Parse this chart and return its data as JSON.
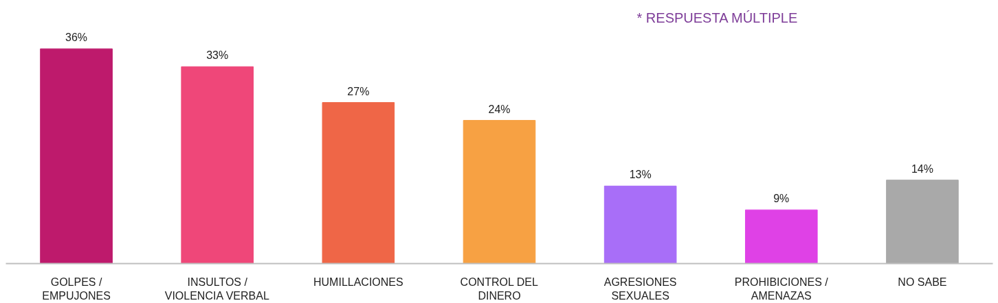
{
  "chart_data": {
    "type": "bar",
    "categories": [
      "GOLPES /\nEMPUJONES",
      "INSULTOS /\nVIOLENCIA VERBAL",
      "HUMILLACIONES",
      "CONTROL DEL\nDINERO",
      "AGRESIONES\nSEXUALES",
      "PROHIBICIONES /\nAMENAZAS",
      "NO SABE"
    ],
    "values": [
      36,
      33,
      27,
      24,
      13,
      9,
      14
    ],
    "colors": [
      "#be1a6c",
      "#ef4779",
      "#ef6647",
      "#f7a143",
      "#a86ef8",
      "#df41e6",
      "#a9a9a9"
    ],
    "value_labels": [
      "36%",
      "33%",
      "27%",
      "24%",
      "13%",
      "9%",
      "14%"
    ],
    "tick_labels": "x",
    "annotations": [
      "* RESPUESTA MÚLTIPLE"
    ]
  }
}
